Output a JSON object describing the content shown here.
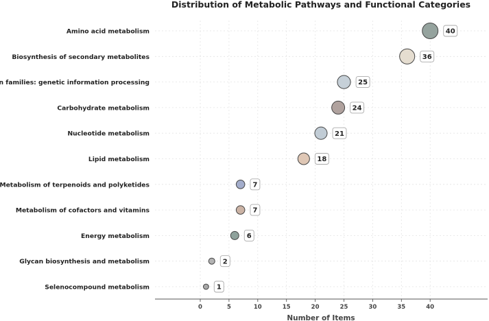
{
  "chart_data": {
    "type": "scatter",
    "title": "Distribution of Metabolic Pathways and Functional Categories",
    "xlabel": "Number of Items",
    "ylabel": "",
    "xlim": [
      -8,
      50
    ],
    "xticks": [
      0,
      5,
      10,
      15,
      20,
      25,
      30,
      35,
      40
    ],
    "grid": true,
    "categories": [
      "Amino acid metabolism",
      "Biosynthesis of secondary metabolites",
      "Protein families: genetic information processing",
      "Carbohydrate metabolism",
      "Nucleotide metabolism",
      "Lipid metabolism",
      "Metabolism of terpenoids and polyketides",
      "Metabolism of cofactors and vitamins",
      "Energy metabolism",
      "Glycan biosynthesis and metabolism",
      "Selenocompound metabolism"
    ],
    "values": [
      40,
      36,
      25,
      24,
      21,
      18,
      7,
      7,
      6,
      2,
      1
    ],
    "colors": [
      "#95a39e",
      "#e5ddd0",
      "#c6d0d8",
      "#b0a29e",
      "#c1ccd5",
      "#dfc7b5",
      "#a3adcb",
      "#cbb3a5",
      "#8fa29c",
      "#b3b3b3",
      "#a9a9a9"
    ]
  }
}
